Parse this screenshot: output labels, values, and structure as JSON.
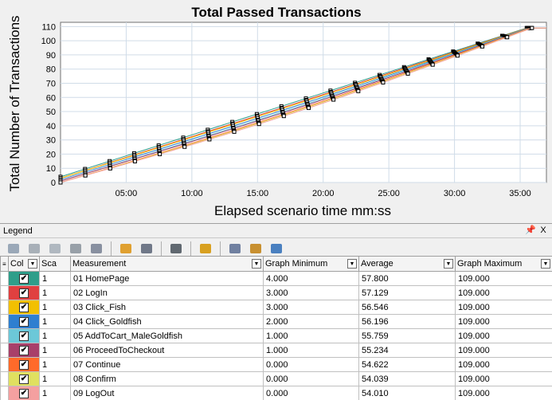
{
  "chart_data": {
    "type": "line",
    "title": "Total Passed Transactions",
    "xlabel": "Elapsed scenario time mm:ss",
    "ylabel": "Total Number of Transactions",
    "x_ticks": [
      "05:00",
      "10:00",
      "15:00",
      "20:00",
      "25:00",
      "30:00",
      "35:00"
    ],
    "y_ticks": [
      "0",
      "10",
      "20",
      "30",
      "40",
      "50",
      "60",
      "70",
      "80",
      "90",
      "100",
      "110"
    ],
    "xlim_minutes": [
      0,
      37
    ],
    "ylim": [
      0,
      113
    ],
    "grid": true,
    "series": [
      {
        "name": "01 HomePage",
        "color": "#2e9e8a",
        "start": 4,
        "end": 109
      },
      {
        "name": "02 LogIn",
        "color": "#e04040",
        "start": 3,
        "end": 109
      },
      {
        "name": "03 Click_Fish",
        "color": "#f2c000",
        "start": 3,
        "end": 109
      },
      {
        "name": "04 Click_Goldfish",
        "color": "#2f7fd0",
        "start": 2,
        "end": 109
      },
      {
        "name": "05 AddToCart_MaleGoldfish",
        "color": "#6cc8d8",
        "start": 1,
        "end": 109
      },
      {
        "name": "06 ProceedToCheckout",
        "color": "#a8406a",
        "start": 1,
        "end": 109
      },
      {
        "name": "07 Continue",
        "color": "#ff6a2a",
        "start": 0,
        "end": 109
      },
      {
        "name": "08 Confirm",
        "color": "#e0e060",
        "start": 0,
        "end": 109
      },
      {
        "name": "09 LogOut",
        "color": "#f4a0a0",
        "start": 0,
        "end": 109
      }
    ]
  },
  "legend": {
    "title": "Legend",
    "pin": "p",
    "close": "X",
    "columns": {
      "col": "Col",
      "scale": "Sca",
      "measurement": "Measurement",
      "graph_min": "Graph Minimum",
      "average": "Average",
      "graph_max": "Graph Maximum"
    },
    "rows": [
      {
        "color": "#2e9e8a",
        "scale": "1",
        "measurement": "01 HomePage",
        "min": "4.000",
        "avg": "57.800",
        "max": "109.000"
      },
      {
        "color": "#e04040",
        "scale": "1",
        "measurement": "02 LogIn",
        "min": "3.000",
        "avg": "57.129",
        "max": "109.000"
      },
      {
        "color": "#f2c000",
        "scale": "1",
        "measurement": "03 Click_Fish",
        "min": "3.000",
        "avg": "56.546",
        "max": "109.000"
      },
      {
        "color": "#2f7fd0",
        "scale": "1",
        "measurement": "04 Click_Goldfish",
        "min": "2.000",
        "avg": "56.196",
        "max": "109.000"
      },
      {
        "color": "#6cc8d8",
        "scale": "1",
        "measurement": "05 AddToCart_MaleGoldfish",
        "min": "1.000",
        "avg": "55.759",
        "max": "109.000"
      },
      {
        "color": "#a8406a",
        "scale": "1",
        "measurement": "06 ProceedToCheckout",
        "min": "1.000",
        "avg": "55.234",
        "max": "109.000"
      },
      {
        "color": "#ff6a2a",
        "scale": "1",
        "measurement": "07 Continue",
        "min": "0.000",
        "avg": "54.622",
        "max": "109.000"
      },
      {
        "color": "#e0e060",
        "scale": "1",
        "measurement": "08 Confirm",
        "min": "0.000",
        "avg": "54.039",
        "max": "109.000"
      },
      {
        "color": "#f4a0a0",
        "scale": "1",
        "measurement": "09 LogOut",
        "min": "0.000",
        "avg": "54.010",
        "max": "109.000"
      }
    ],
    "check_mark": "✔"
  },
  "toolbar_icons": [
    "filter-icon",
    "filter-add-icon",
    "filter-edit-icon",
    "link-icon",
    "funnel-icon",
    "highlight-icon",
    "copy-icon",
    "sort-icon",
    "columns-icon",
    "export-icon",
    "settings-icon",
    "table-icon"
  ]
}
